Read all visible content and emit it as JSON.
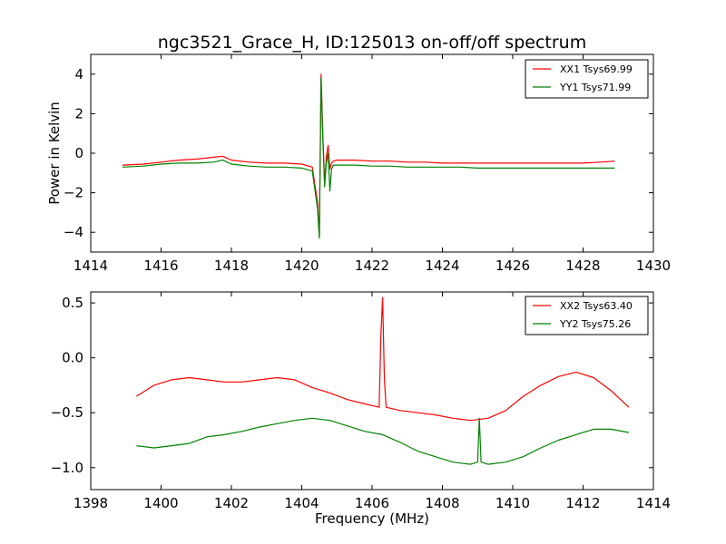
{
  "chart_data": [
    {
      "type": "line",
      "title": "ngc3521_Grace_H, ID:125013 on-off/off spectrum",
      "xlabel": "",
      "ylabel": "Power in Kelvin",
      "xlim": [
        1414,
        1430
      ],
      "ylim": [
        -5,
        5
      ],
      "xticks": [
        "1414",
        "1416",
        "1418",
        "1420",
        "1422",
        "1424",
        "1426",
        "1428",
        "1430"
      ],
      "yticks": [
        "4",
        "2",
        "0",
        "−2",
        "−4"
      ],
      "grid": false,
      "legend_position": "top-right",
      "series": [
        {
          "name": "XX1 Tsys69.99",
          "color": "#ff0000",
          "x": [
            1414.9,
            1415.5,
            1416.0,
            1416.5,
            1417.0,
            1417.5,
            1417.75,
            1418.0,
            1418.5,
            1419.0,
            1419.5,
            1420.0,
            1420.3,
            1420.45,
            1420.5,
            1420.55,
            1420.6,
            1420.65,
            1420.7,
            1420.75,
            1420.8,
            1420.85,
            1420.9,
            1421.0,
            1421.5,
            1422.0,
            1422.5,
            1423.0,
            1423.5,
            1424.0,
            1424.5,
            1425.0,
            1425.5,
            1426.0,
            1426.5,
            1427.0,
            1427.5,
            1428.0,
            1428.5,
            1428.9
          ],
          "values": [
            -0.6,
            -0.55,
            -0.45,
            -0.35,
            -0.3,
            -0.2,
            -0.15,
            -0.35,
            -0.45,
            -0.5,
            -0.5,
            -0.55,
            -0.7,
            -2.5,
            -4.2,
            4.0,
            1.0,
            -1.5,
            -0.2,
            0.4,
            -0.8,
            -0.5,
            -0.4,
            -0.35,
            -0.35,
            -0.4,
            -0.4,
            -0.45,
            -0.45,
            -0.5,
            -0.5,
            -0.5,
            -0.5,
            -0.5,
            -0.5,
            -0.5,
            -0.5,
            -0.5,
            -0.45,
            -0.4
          ]
        },
        {
          "name": "YY1 Tsys71.99",
          "color": "#008000",
          "x": [
            1414.9,
            1415.5,
            1416.0,
            1416.5,
            1417.0,
            1417.5,
            1417.75,
            1418.0,
            1418.5,
            1419.0,
            1419.5,
            1420.0,
            1420.3,
            1420.45,
            1420.5,
            1420.55,
            1420.6,
            1420.65,
            1420.7,
            1420.75,
            1420.8,
            1420.85,
            1420.9,
            1421.0,
            1421.5,
            1422.0,
            1422.5,
            1423.0,
            1423.5,
            1424.0,
            1424.5,
            1425.0,
            1425.5,
            1426.0,
            1426.5,
            1427.0,
            1427.5,
            1428.0,
            1428.5,
            1428.9
          ],
          "values": [
            -0.7,
            -0.65,
            -0.55,
            -0.5,
            -0.5,
            -0.45,
            -0.35,
            -0.55,
            -0.65,
            -0.7,
            -0.7,
            -0.75,
            -0.9,
            -2.8,
            -4.3,
            3.8,
            0.8,
            -1.7,
            -0.5,
            0.0,
            -1.9,
            -0.8,
            -0.6,
            -0.6,
            -0.6,
            -0.65,
            -0.65,
            -0.7,
            -0.7,
            -0.7,
            -0.7,
            -0.75,
            -0.75,
            -0.75,
            -0.75,
            -0.75,
            -0.75,
            -0.75,
            -0.75,
            -0.75
          ]
        }
      ]
    },
    {
      "type": "line",
      "title": "",
      "xlabel": "Frequency (MHz)",
      "ylabel": "",
      "xlim": [
        1398,
        1414
      ],
      "ylim": [
        -1.2,
        0.6
      ],
      "xticks": [
        "1398",
        "1400",
        "1402",
        "1404",
        "1406",
        "1408",
        "1410",
        "1412",
        "1414"
      ],
      "yticks": [
        "0.5",
        "0.0",
        "−0.5",
        "−1.0"
      ],
      "grid": false,
      "legend_position": "top-right",
      "series": [
        {
          "name": "XX2 Tsys63.40",
          "color": "#ff0000",
          "x": [
            1399.3,
            1399.8,
            1400.3,
            1400.8,
            1401.3,
            1401.8,
            1402.3,
            1402.8,
            1403.3,
            1403.8,
            1404.3,
            1404.8,
            1405.3,
            1405.8,
            1406.2,
            1406.25,
            1406.3,
            1406.35,
            1406.4,
            1406.8,
            1407.3,
            1407.8,
            1408.3,
            1408.8,
            1409.3,
            1409.8,
            1410.3,
            1410.8,
            1411.3,
            1411.8,
            1412.3,
            1412.8,
            1413.3
          ],
          "values": [
            -0.35,
            -0.25,
            -0.2,
            -0.18,
            -0.2,
            -0.22,
            -0.22,
            -0.2,
            -0.18,
            -0.2,
            -0.27,
            -0.32,
            -0.38,
            -0.42,
            -0.45,
            0.2,
            0.55,
            -0.2,
            -0.45,
            -0.48,
            -0.5,
            -0.52,
            -0.55,
            -0.57,
            -0.55,
            -0.48,
            -0.35,
            -0.25,
            -0.17,
            -0.13,
            -0.18,
            -0.3,
            -0.45
          ]
        },
        {
          "name": "YY2 Tsys75.26",
          "color": "#008000",
          "x": [
            1399.3,
            1399.8,
            1400.3,
            1400.8,
            1401.3,
            1401.8,
            1402.3,
            1402.8,
            1403.3,
            1403.8,
            1404.3,
            1404.8,
            1405.3,
            1405.8,
            1406.3,
            1406.8,
            1407.3,
            1407.8,
            1408.3,
            1408.8,
            1409.0,
            1409.05,
            1409.1,
            1409.3,
            1409.8,
            1410.3,
            1410.8,
            1411.3,
            1411.8,
            1412.3,
            1412.8,
            1413.3
          ],
          "values": [
            -0.8,
            -0.82,
            -0.8,
            -0.78,
            -0.72,
            -0.7,
            -0.67,
            -0.63,
            -0.6,
            -0.57,
            -0.55,
            -0.57,
            -0.62,
            -0.67,
            -0.7,
            -0.77,
            -0.85,
            -0.9,
            -0.95,
            -0.97,
            -0.95,
            -0.55,
            -0.95,
            -0.97,
            -0.95,
            -0.9,
            -0.82,
            -0.75,
            -0.7,
            -0.65,
            -0.65,
            -0.68
          ]
        }
      ]
    }
  ]
}
